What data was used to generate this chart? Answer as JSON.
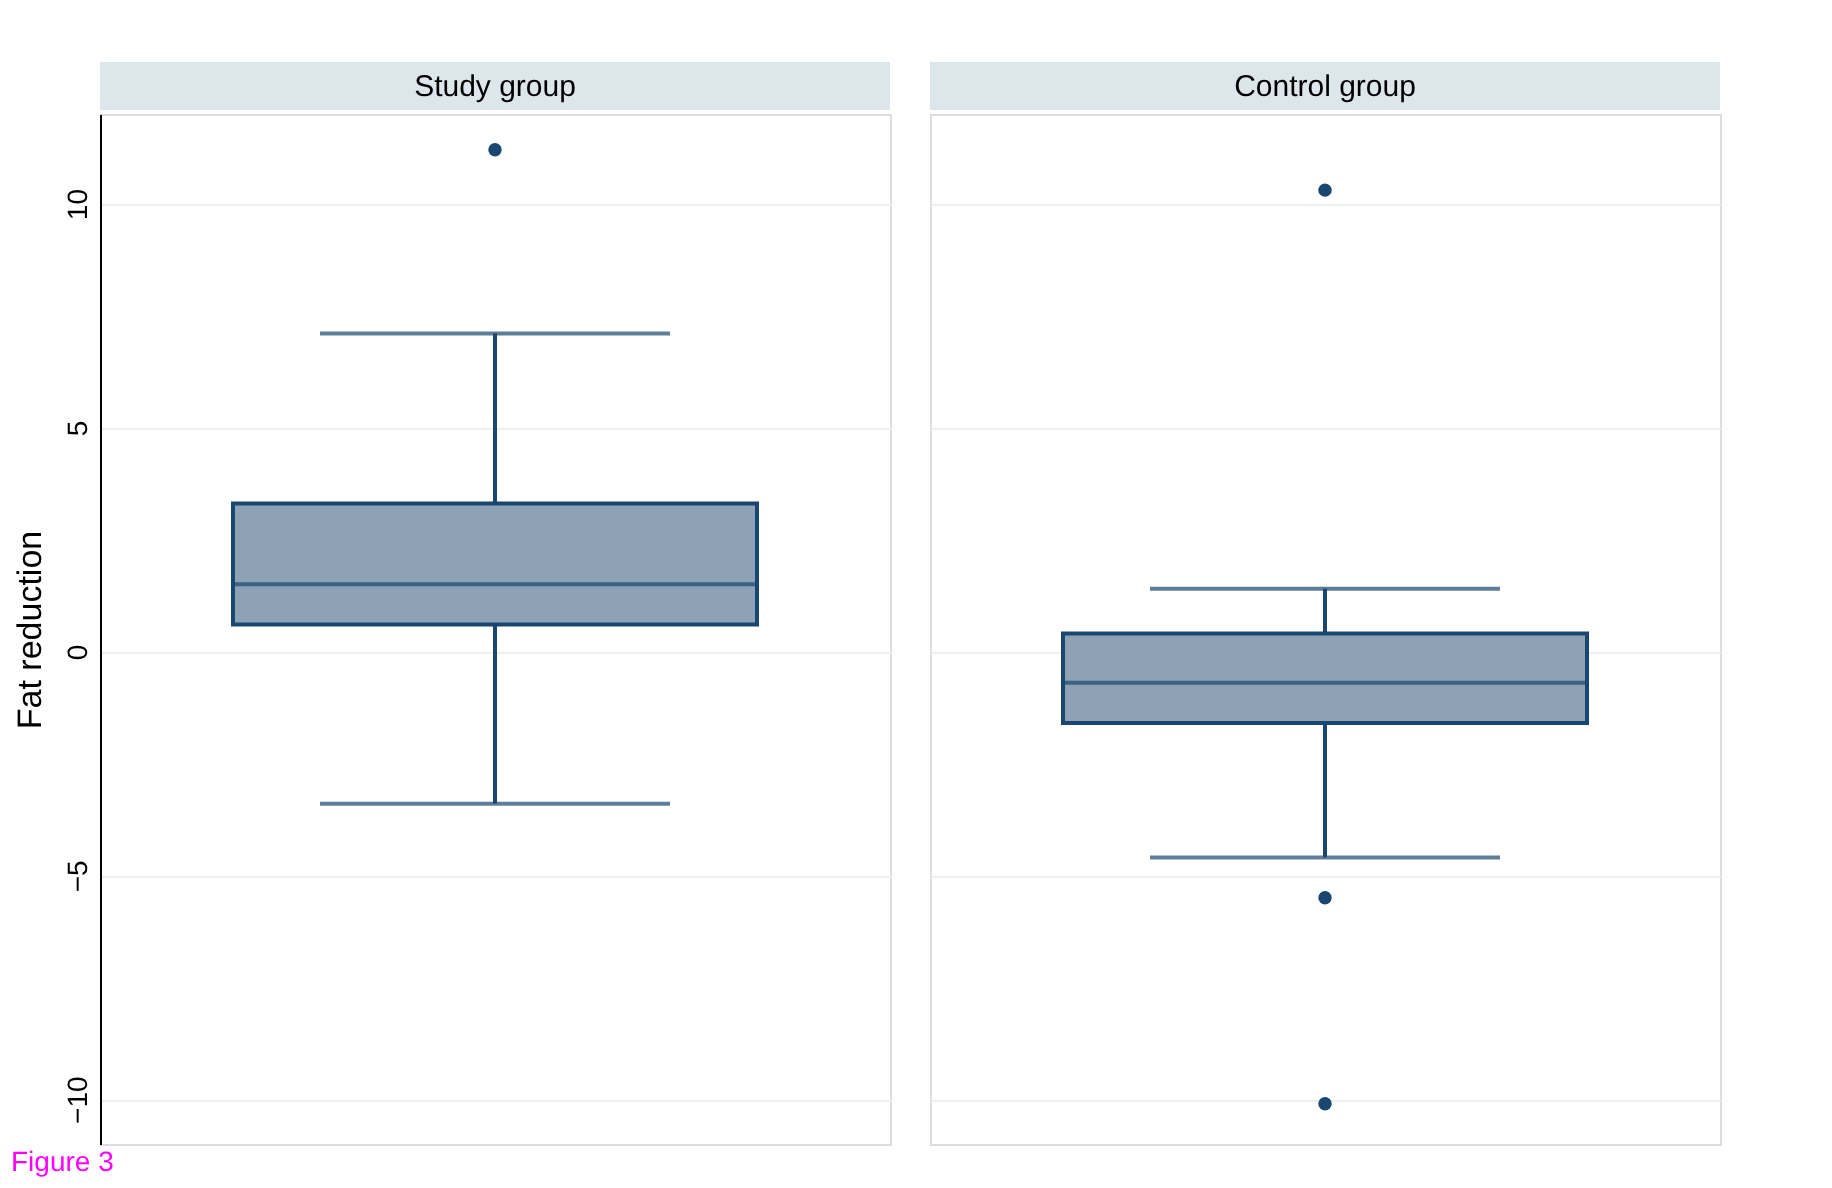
{
  "chart_data": {
    "type": "box",
    "categories": [
      "Study group",
      "Control group"
    ],
    "ylabel": "Fat reduction",
    "ylim": [
      -11,
      12
    ],
    "yticks": [
      -10,
      -5,
      0,
      5,
      10
    ],
    "grid": "y",
    "tick_labels": "y",
    "series": [
      {
        "color": "#8ea2b5",
        "boxes": [
          {
            "low": -3.4,
            "q1": 0.6,
            "median": 1.5,
            "q3": 3.3,
            "high": 7.1,
            "outliers": [
              11.2
            ]
          },
          {
            "low": -4.6,
            "q1": -1.6,
            "median": -0.7,
            "q3": 0.4,
            "high": 1.4,
            "outliers": [
              10.3,
              -5.5,
              -10.1
            ]
          }
        ]
      }
    ],
    "annotations": [
      "Figure 3"
    ]
  }
}
